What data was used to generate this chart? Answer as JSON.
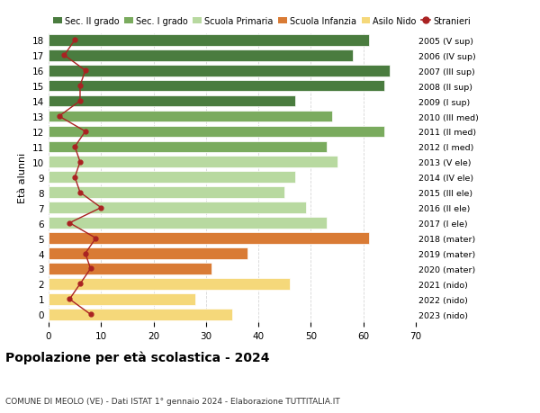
{
  "ages": [
    18,
    17,
    16,
    15,
    14,
    13,
    12,
    11,
    10,
    9,
    8,
    7,
    6,
    5,
    4,
    3,
    2,
    1,
    0
  ],
  "years": [
    "2005 (V sup)",
    "2006 (IV sup)",
    "2007 (III sup)",
    "2008 (II sup)",
    "2009 (I sup)",
    "2010 (III med)",
    "2011 (II med)",
    "2012 (I med)",
    "2013 (V ele)",
    "2014 (IV ele)",
    "2015 (III ele)",
    "2016 (II ele)",
    "2017 (I ele)",
    "2018 (mater)",
    "2019 (mater)",
    "2020 (mater)",
    "2021 (nido)",
    "2022 (nido)",
    "2023 (nido)"
  ],
  "bar_values": [
    61,
    58,
    65,
    64,
    47,
    54,
    64,
    53,
    55,
    47,
    45,
    49,
    53,
    61,
    38,
    31,
    46,
    28,
    35
  ],
  "stranieri": [
    5,
    3,
    7,
    6,
    6,
    2,
    7,
    5,
    6,
    5,
    6,
    10,
    4,
    9,
    7,
    8,
    6,
    4,
    8
  ],
  "bar_colors": [
    "#4a7c3f",
    "#4a7c3f",
    "#4a7c3f",
    "#4a7c3f",
    "#4a7c3f",
    "#7aab5e",
    "#7aab5e",
    "#7aab5e",
    "#b8d9a0",
    "#b8d9a0",
    "#b8d9a0",
    "#b8d9a0",
    "#b8d9a0",
    "#d97b35",
    "#d97b35",
    "#d97b35",
    "#f5d87a",
    "#f5d87a",
    "#f5d87a"
  ],
  "legend_labels": [
    "Sec. II grado",
    "Sec. I grado",
    "Scuola Primaria",
    "Scuola Infanzia",
    "Asilo Nido",
    "Stranieri"
  ],
  "legend_colors": [
    "#4a7c3f",
    "#7aab5e",
    "#b8d9a0",
    "#d97b35",
    "#f5d87a",
    "#aa2222"
  ],
  "title": "Popolazione per età scolastica - 2024",
  "subtitle": "COMUNE DI MEOLO (VE) - Dati ISTAT 1° gennaio 2024 - Elaborazione TUTTITALIA.IT",
  "ylabel_left": "Età alunni",
  "xlim": [
    0,
    70
  ],
  "xticks": [
    0,
    10,
    20,
    30,
    40,
    50,
    60,
    70
  ],
  "background_color": "#ffffff",
  "grid_color": "#cccccc",
  "stranieri_color": "#aa2222"
}
